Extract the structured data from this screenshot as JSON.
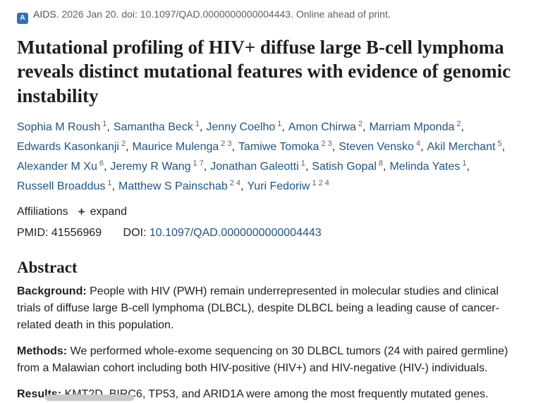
{
  "header": {
    "journal": "AIDS",
    "citation": ". 2026 Jan 20. doi: 10.1097/QAD.0000000000004443. Online ahead of print.",
    "journal_icon_glyph": "A"
  },
  "title": "Mutational profiling of HIV+ diffuse large B-cell lymphoma reveals distinct mutational features with evidence of genomic instability",
  "authors": [
    {
      "name": "Sophia M Roush",
      "sup": "1"
    },
    {
      "name": "Samantha Beck",
      "sup": "1"
    },
    {
      "name": "Jenny Coelho",
      "sup": "1"
    },
    {
      "name": "Amon Chirwa",
      "sup": "2"
    },
    {
      "name": "Marriam Mponda",
      "sup": "2"
    },
    {
      "name": "Edwards Kasonkanji",
      "sup": "2"
    },
    {
      "name": "Maurice Mulenga",
      "sup": "2 3"
    },
    {
      "name": "Tamiwe Tomoka",
      "sup": "2 3"
    },
    {
      "name": "Steven Vensko",
      "sup": "4"
    },
    {
      "name": "Akil Merchant",
      "sup": "5"
    },
    {
      "name": "Alexander M Xu",
      "sup": "6"
    },
    {
      "name": "Jeremy R Wang",
      "sup": "1 7"
    },
    {
      "name": "Jonathan Galeotti",
      "sup": "1"
    },
    {
      "name": "Satish Gopal",
      "sup": "8"
    },
    {
      "name": "Melinda Yates",
      "sup": "1"
    },
    {
      "name": "Russell Broaddus",
      "sup": "1"
    },
    {
      "name": "Matthew S Painschab",
      "sup": "2 4"
    },
    {
      "name": "Yuri Fedoriw",
      "sup": "1 2 4"
    }
  ],
  "affiliations": {
    "label": "Affiliations",
    "expand_icon": "+",
    "expand_label": "expand"
  },
  "identifiers": {
    "pmid_label": "PMID:",
    "pmid_value": "41556969",
    "doi_label": "DOI:",
    "doi_value": "10.1097/QAD.0000000000004443"
  },
  "abstract": {
    "heading": "Abstract",
    "sections": [
      {
        "label": "Background:",
        "text": "People with HIV (PWH) remain underrepresented in molecular studies and clinical trials of diffuse large B-cell lymphoma (DLBCL), despite DLBCL being a leading cause of cancer-related death in this population."
      },
      {
        "label": "Methods:",
        "text": "We performed whole-exome sequencing on 30 DLBCL tumors (24 with paired germline) from a Malawian cohort including both HIV-positive (HIV+) and HIV-negative (HIV-) individuals."
      },
      {
        "label": "Results:",
        "text": "KMT2D, BIRC6, TP53, and ARID1A were among the most frequently mutated genes."
      }
    ]
  },
  "colors": {
    "link": "#20558a",
    "muted_text": "#5b616b",
    "body_text": "#212121",
    "journal_icon": "#3173b5",
    "scrollbar_thumb": "#c7c9cb"
  }
}
